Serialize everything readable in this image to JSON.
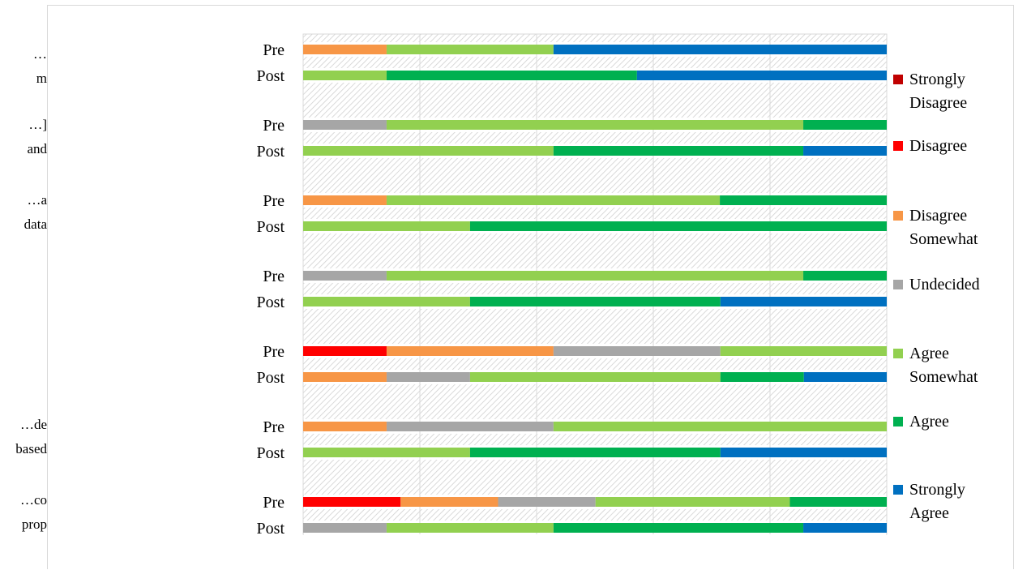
{
  "left_labels": [
    {
      "line1": "…",
      "line2": "m"
    },
    {
      "line1": "…]",
      "line2": "and"
    },
    {
      "line1": "…a",
      "line2": "data"
    },
    {
      "line1": "…de",
      "line2": "based"
    },
    {
      "line1": "…co",
      "line2": "prop"
    }
  ],
  "colors": {
    "strongly_disagree": "#c00000",
    "disagree": "#ff0000",
    "disagree_somewhat": "#f79646",
    "undecided": "#a6a6a6",
    "agree_somewhat": "#92d050",
    "agree": "#00b050",
    "strongly_agree": "#0070c0"
  },
  "chart_data": {
    "type": "bar",
    "orientation": "horizontal",
    "stacked": "100%",
    "xlim": [
      0,
      100
    ],
    "grid": true,
    "legend_position": "right",
    "categories": [
      "Pre",
      "Post",
      "Pre",
      "Post",
      "Pre",
      "Post",
      "Pre",
      "Post",
      "Pre",
      "Post",
      "Pre",
      "Post",
      "Pre",
      "Post"
    ],
    "series": [
      {
        "name": "Strongly Disagree",
        "color": "#c00000",
        "values": [
          0,
          0,
          0,
          0,
          0,
          0,
          0,
          0,
          0,
          0,
          0,
          0,
          0,
          0
        ]
      },
      {
        "name": "Disagree",
        "color": "#ff0000",
        "values": [
          0,
          0,
          0,
          0,
          0,
          0,
          0,
          0,
          14.3,
          0,
          0,
          0,
          16.7,
          0
        ]
      },
      {
        "name": "Disagree Somewhat",
        "color": "#f79646",
        "values": [
          14.3,
          0,
          0,
          0,
          14.3,
          0,
          0,
          0,
          28.6,
          14.3,
          14.3,
          0,
          16.7,
          0
        ]
      },
      {
        "name": "Undecided",
        "color": "#a6a6a6",
        "values": [
          0,
          0,
          14.3,
          0,
          0,
          0,
          14.3,
          0,
          28.6,
          14.3,
          28.6,
          0,
          16.7,
          14.3
        ]
      },
      {
        "name": "Agree Somewhat",
        "color": "#92d050",
        "values": [
          28.6,
          14.3,
          71.4,
          42.9,
          57.1,
          28.6,
          71.4,
          28.6,
          28.5,
          42.9,
          57.1,
          28.6,
          33.3,
          28.6
        ]
      },
      {
        "name": "Agree",
        "color": "#00b050",
        "values": [
          0,
          42.9,
          14.3,
          42.8,
          28.6,
          71.4,
          14.3,
          42.9,
          0,
          14.3,
          0,
          42.9,
          16.6,
          42.8
        ]
      },
      {
        "name": "Strongly Agree",
        "color": "#0070c0",
        "values": [
          57.1,
          42.8,
          0,
          14.3,
          0,
          0,
          0,
          28.5,
          0,
          14.2,
          0,
          28.5,
          0,
          14.3
        ]
      }
    ]
  }
}
